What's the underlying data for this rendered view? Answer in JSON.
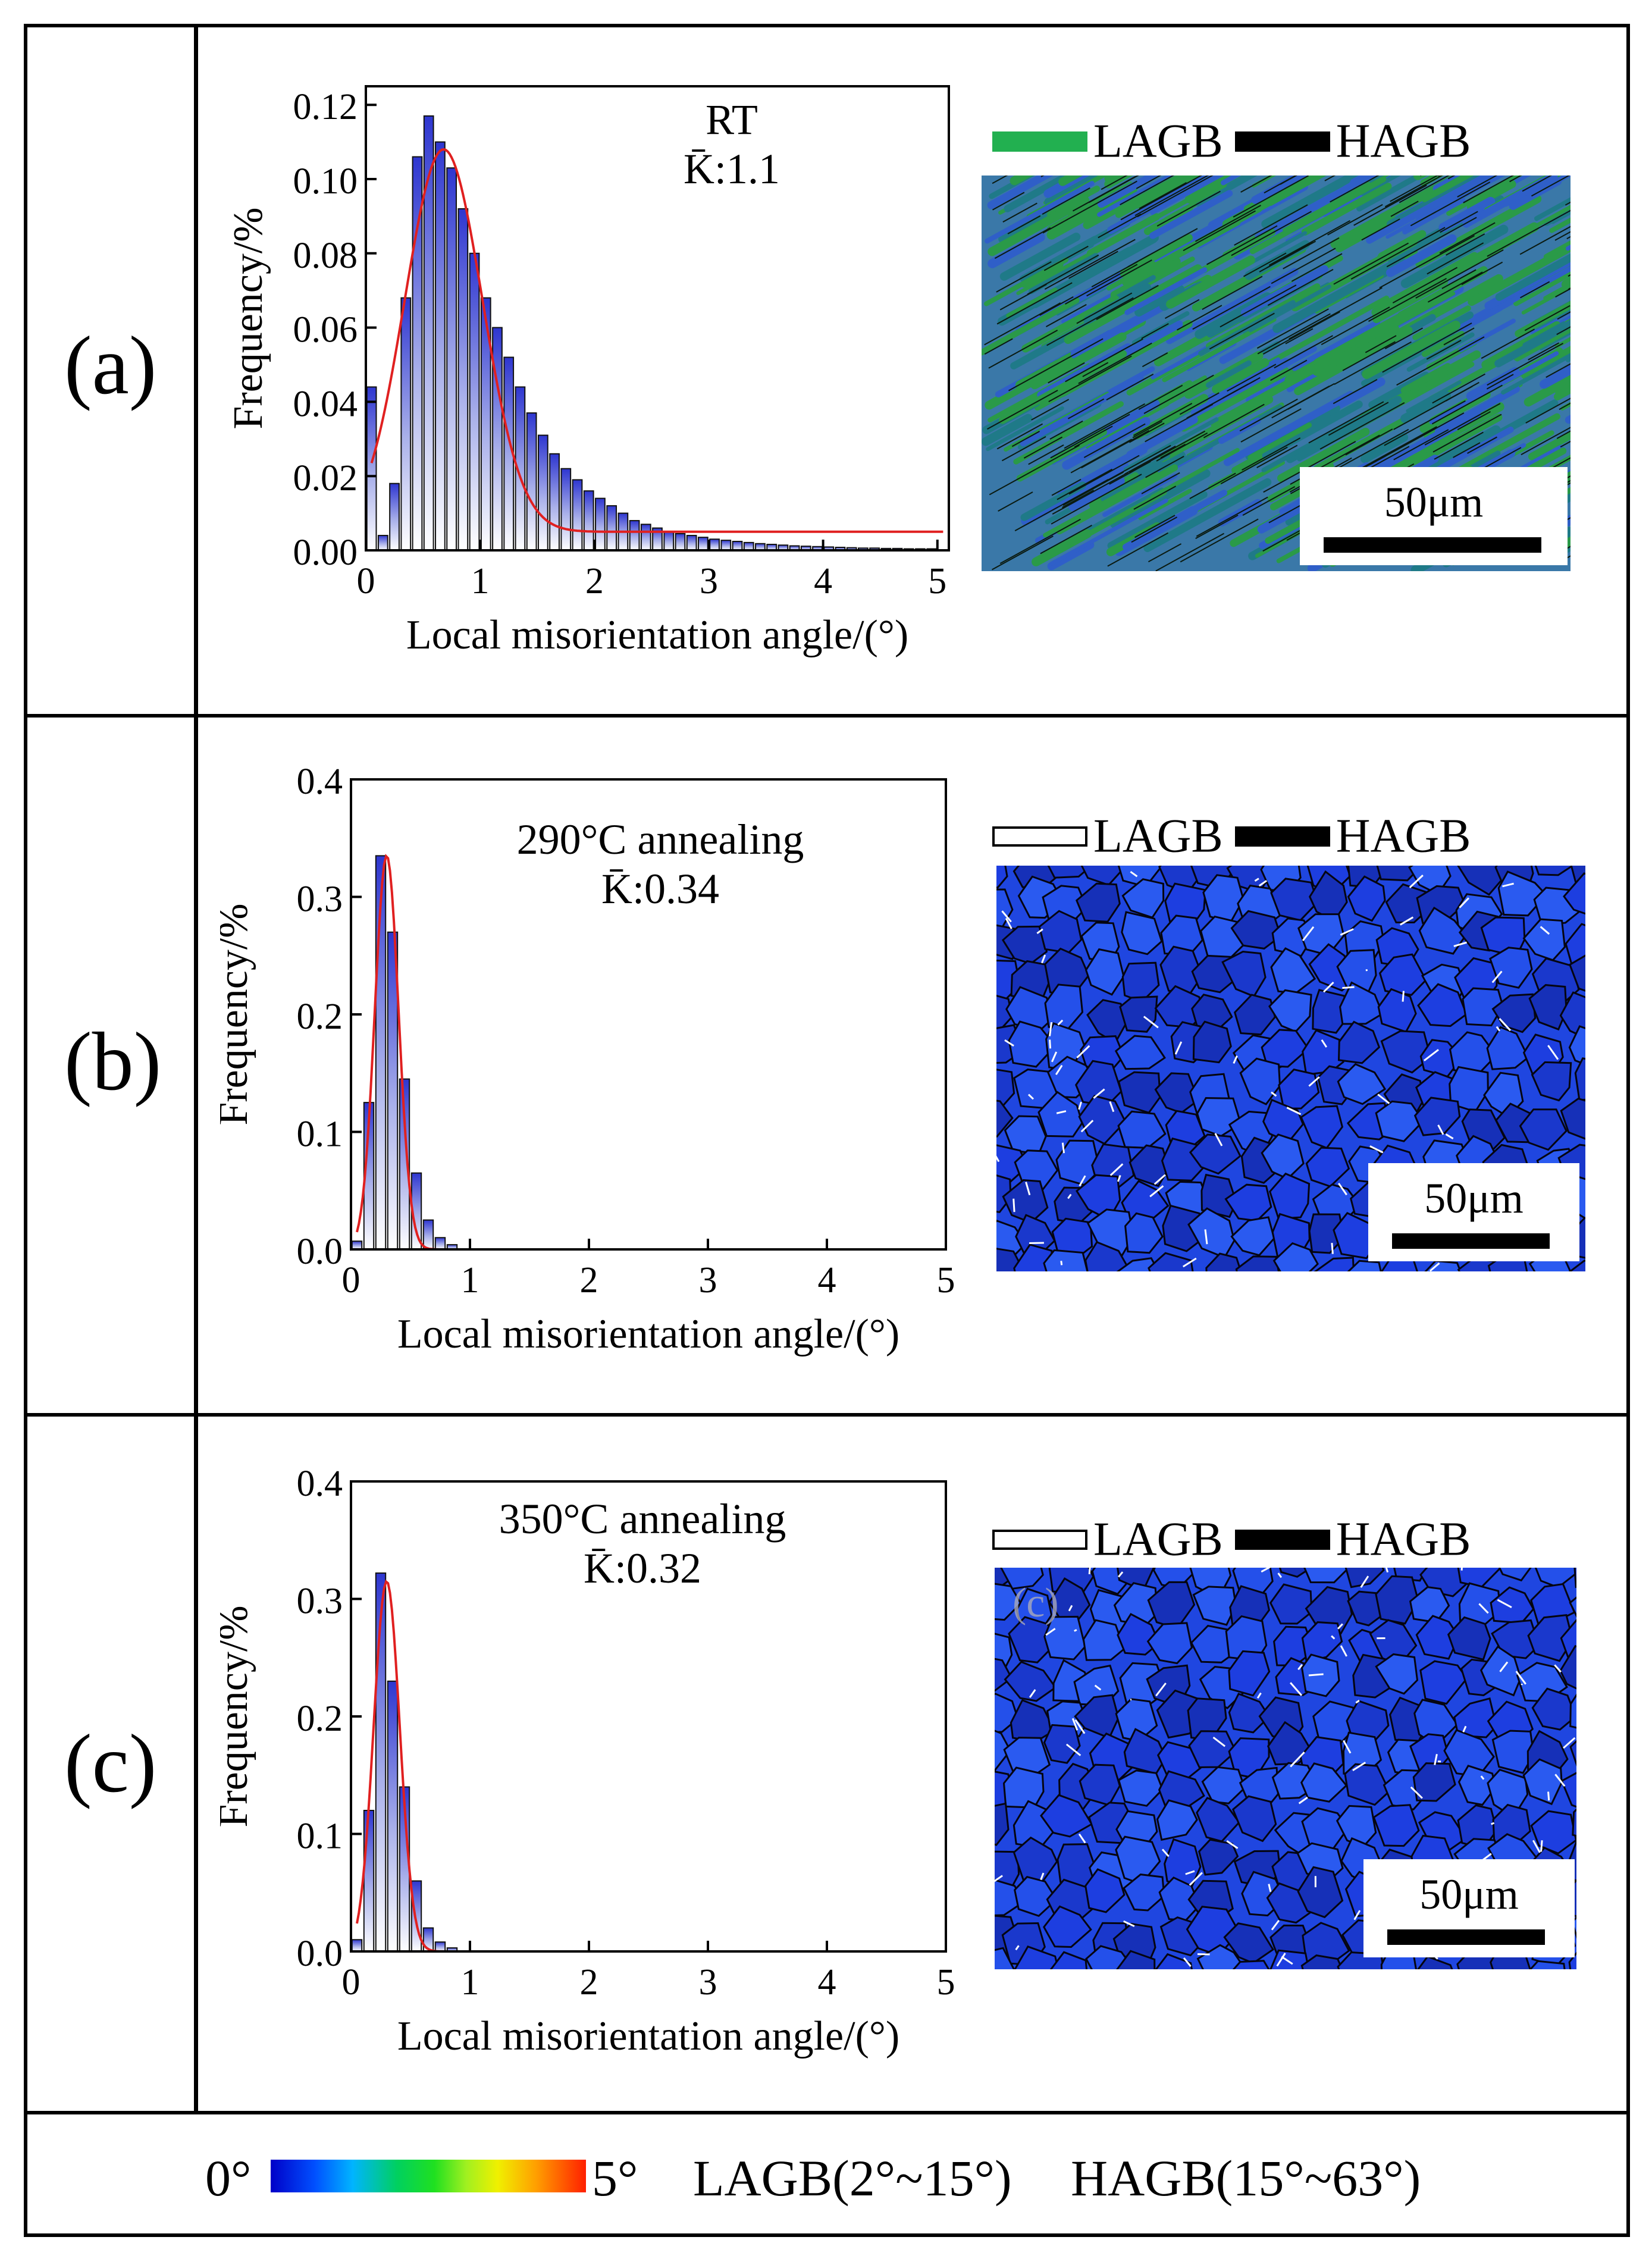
{
  "panels": [
    {
      "label": "(a)",
      "condition": "RT",
      "kavg": "K̄:1.1",
      "map_legend": {
        "lagb": "LAGB",
        "hagb": "HAGB"
      },
      "map_lagb_swatch": "#22b050",
      "map_base_color": "#3a78a8",
      "scale_text": "50μm",
      "chart_data": {
        "type": "bar",
        "title": "RT",
        "xlabel": "Local misorientation angle/(°)",
        "ylabel": "Frequency/%",
        "xlim": [
          0,
          5.1
        ],
        "ylim": [
          0,
          0.125
        ],
        "xticks": [
          "0",
          "1",
          "2",
          "3",
          "4",
          "5"
        ],
        "yticks": [
          "0.00",
          "0.02",
          "0.04",
          "0.06",
          "0.08",
          "0.10",
          "0.12"
        ],
        "x": [
          0.05,
          0.15,
          0.25,
          0.35,
          0.45,
          0.55,
          0.65,
          0.75,
          0.85,
          0.95,
          1.05,
          1.15,
          1.25,
          1.35,
          1.45,
          1.55,
          1.65,
          1.75,
          1.85,
          1.95,
          2.05,
          2.15,
          2.25,
          2.35,
          2.45,
          2.55,
          2.65,
          2.75,
          2.85,
          2.95,
          3.05,
          3.15,
          3.25,
          3.35,
          3.45,
          3.55,
          3.65,
          3.75,
          3.85,
          3.95,
          4.05,
          4.15,
          4.25,
          4.35,
          4.45,
          4.55,
          4.65,
          4.75,
          4.85,
          4.95
        ],
        "values": [
          0.044,
          0.004,
          0.018,
          0.068,
          0.106,
          0.117,
          0.11,
          0.103,
          0.092,
          0.08,
          0.068,
          0.06,
          0.052,
          0.044,
          0.037,
          0.031,
          0.026,
          0.022,
          0.019,
          0.016,
          0.014,
          0.012,
          0.01,
          0.008,
          0.007,
          0.006,
          0.005,
          0.0045,
          0.004,
          0.0035,
          0.003,
          0.0027,
          0.0024,
          0.0021,
          0.0018,
          0.0016,
          0.0014,
          0.0012,
          0.0011,
          0.001,
          0.0009,
          0.0008,
          0.0007,
          0.0006,
          0.0006,
          0.0005,
          0.0005,
          0.0004,
          0.0004,
          0.0004
        ],
        "fit": {
          "type": "gaussian",
          "peak_x": 0.68,
          "peak_y": 0.108,
          "sigma": 0.34,
          "baseline": 0.005
        }
      }
    },
    {
      "label": "(b)",
      "condition": "290°C annealing",
      "kavg": "K̄:0.34",
      "map_legend": {
        "lagb": "LAGB",
        "hagb": "HAGB"
      },
      "map_lagb_swatch": "#ffffff",
      "map_base_color": "#1f46e0",
      "scale_text": "50μm",
      "chart_data": {
        "type": "bar",
        "title": "290°C annealing",
        "xlabel": "Local misorientation angle/(°)",
        "ylabel": "Frequency/%",
        "xlim": [
          0,
          5.0
        ],
        "ylim": [
          0,
          0.4
        ],
        "xticks": [
          "0",
          "1",
          "2",
          "3",
          "4",
          "5"
        ],
        "yticks": [
          "0.0",
          "0.1",
          "0.2",
          "0.3",
          "0.4"
        ],
        "x": [
          0.05,
          0.15,
          0.25,
          0.35,
          0.45,
          0.55,
          0.65,
          0.75,
          0.85
        ],
        "values": [
          0.007,
          0.125,
          0.335,
          0.27,
          0.145,
          0.065,
          0.025,
          0.01,
          0.004
        ],
        "fit": {
          "type": "gaussian",
          "peak_x": 0.3,
          "peak_y": 0.335,
          "sigma": 0.1,
          "baseline": 0.0
        }
      }
    },
    {
      "label": "(c)",
      "condition": "350°C annealing",
      "kavg": "K̄:0.32",
      "map_legend": {
        "lagb": "LAGB",
        "hagb": "HAGB"
      },
      "map_lagb_swatch": "#ffffff",
      "map_base_color": "#1f46e0",
      "inset_label": "(c)",
      "scale_text": "50μm",
      "chart_data": {
        "type": "bar",
        "title": "350°C annealing",
        "xlabel": "Local misorientation angle/(°)",
        "ylabel": "Frequency/%",
        "xlim": [
          0,
          5.0
        ],
        "ylim": [
          0,
          0.4
        ],
        "xticks": [
          "0",
          "1",
          "2",
          "3",
          "4",
          "5"
        ],
        "yticks": [
          "0.0",
          "0.1",
          "0.2",
          "0.3",
          "0.4"
        ],
        "x": [
          0.05,
          0.15,
          0.25,
          0.35,
          0.45,
          0.55,
          0.65,
          0.75,
          0.85
        ],
        "values": [
          0.01,
          0.12,
          0.322,
          0.23,
          0.14,
          0.06,
          0.02,
          0.008,
          0.003
        ],
        "fit": {
          "type": "gaussian",
          "peak_x": 0.3,
          "peak_y": 0.315,
          "sigma": 0.11,
          "baseline": 0.0
        }
      }
    }
  ],
  "footer": {
    "cb_min": "0°",
    "cb_max": "5°",
    "lagb_range": "LAGB(2°~15°)",
    "hagb_range": "HAGB(15°~63°)"
  }
}
